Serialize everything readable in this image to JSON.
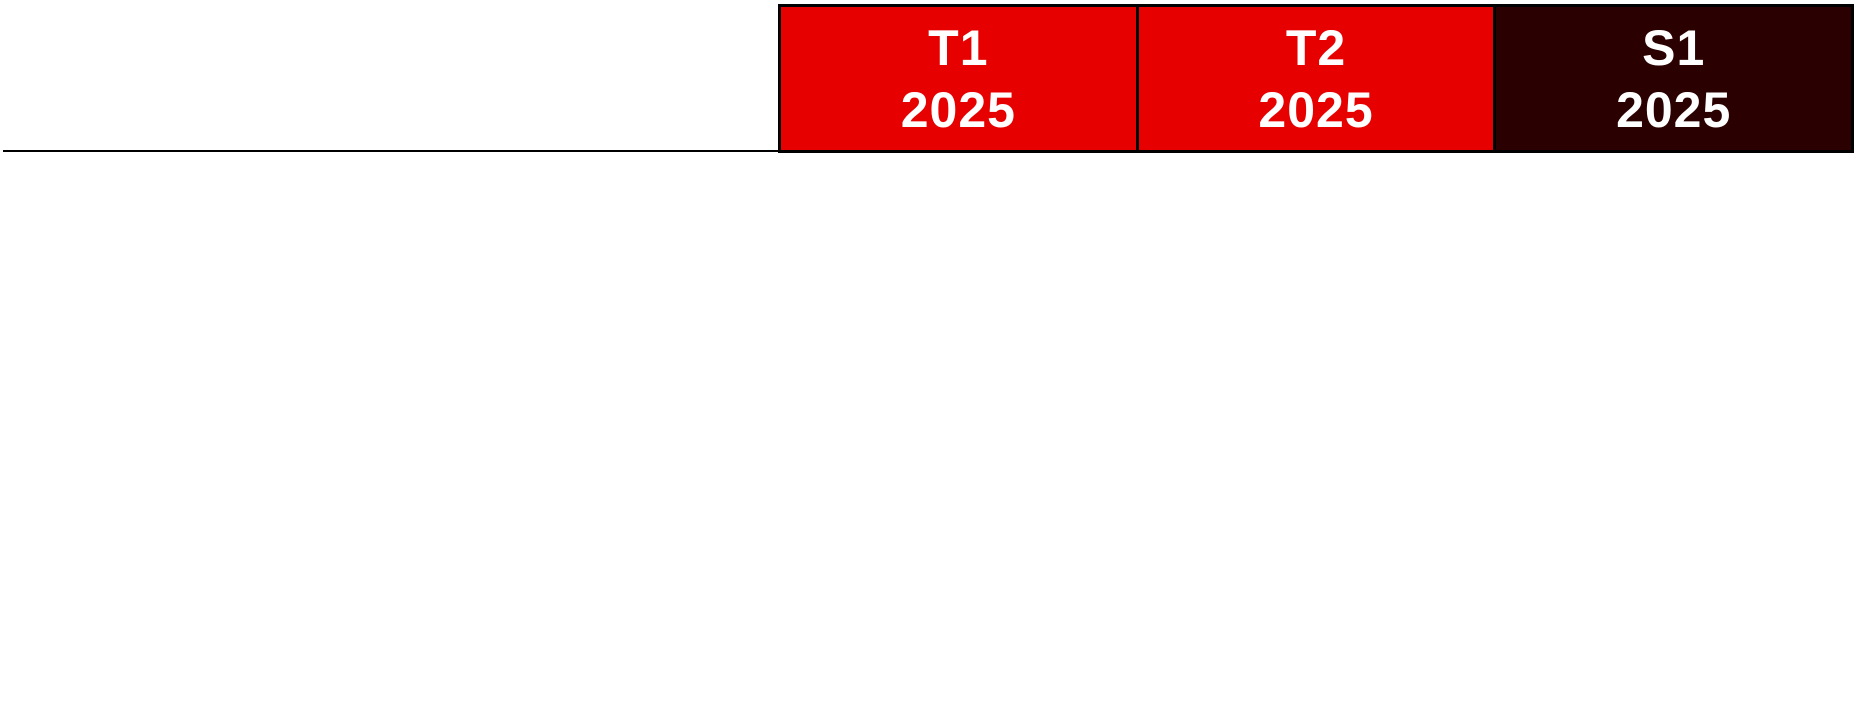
{
  "periods": [
    {
      "line1": "T1",
      "line2": "2025",
      "color": "#e60000"
    },
    {
      "line1": "T2",
      "line2": "2025",
      "color": "#e60000"
    },
    {
      "line1": "S1",
      "line2": "2025",
      "color": "#2b0000"
    }
  ]
}
